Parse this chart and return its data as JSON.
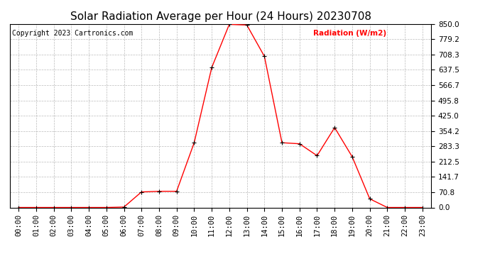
{
  "title": "Solar Radiation Average per Hour (24 Hours) 20230708",
  "copyright_text": "Copyright 2023 Cartronics.com",
  "ylabel": "Radiation (W/m2)",
  "hours": [
    "00:00",
    "01:00",
    "02:00",
    "03:00",
    "04:00",
    "05:00",
    "06:00",
    "07:00",
    "08:00",
    "09:00",
    "10:00",
    "11:00",
    "12:00",
    "13:00",
    "14:00",
    "15:00",
    "16:00",
    "17:00",
    "18:00",
    "19:00",
    "20:00",
    "21:00",
    "22:00",
    "23:00"
  ],
  "values": [
    0.0,
    0.0,
    0.0,
    0.0,
    0.0,
    0.0,
    2.0,
    72.0,
    75.0,
    75.0,
    300.0,
    648.0,
    848.0,
    845.0,
    700.0,
    300.0,
    295.0,
    240.0,
    370.0,
    235.0,
    40.0,
    0.0,
    0.0,
    0.0
  ],
  "line_color": "#ff0000",
  "marker_color": "#000000",
  "background_color": "#ffffff",
  "grid_color": "#aaaaaa",
  "yticks": [
    0.0,
    70.8,
    141.7,
    212.5,
    283.3,
    354.2,
    425.0,
    495.8,
    566.7,
    637.5,
    708.3,
    779.2,
    850.0
  ],
  "ytick_labels": [
    "0.0",
    "70.8",
    "141.7",
    "212.5",
    "283.3",
    "354.2",
    "425.0",
    "495.8",
    "566.7",
    "637.5",
    "708.3",
    "779.2",
    "850.0"
  ],
  "ylim": [
    0.0,
    850.0
  ],
  "title_fontsize": 11,
  "label_fontsize": 8,
  "tick_fontsize": 7.5,
  "copyright_fontsize": 7,
  "ylabel_color": "#ff0000",
  "fig_width": 6.9,
  "fig_height": 3.75,
  "dpi": 100
}
